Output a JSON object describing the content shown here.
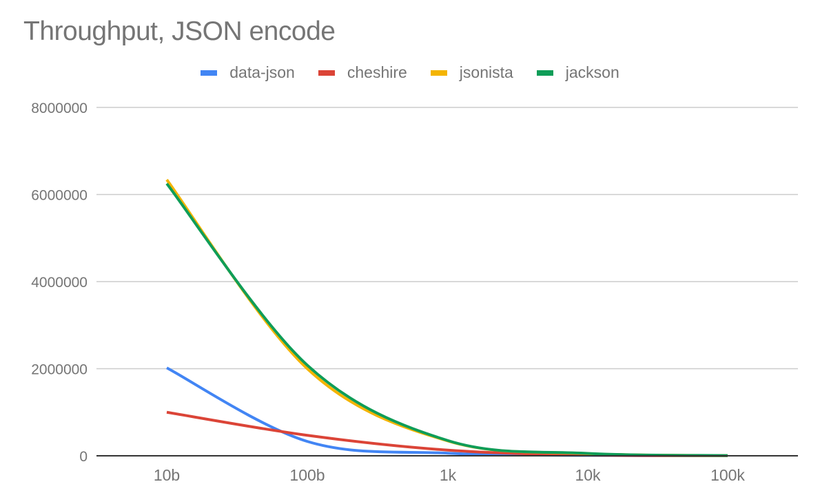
{
  "chart_data": {
    "type": "line",
    "title": "Throughput, JSON encode",
    "xlabel": "",
    "ylabel": "",
    "categories": [
      "10b",
      "100b",
      "1k",
      "10k",
      "100k"
    ],
    "ylim": [
      0,
      8000000
    ],
    "yticks": [
      "8000000",
      "6000000",
      "4000000",
      "2000000",
      "0"
    ],
    "grid": true,
    "legend_position": "top",
    "series": [
      {
        "name": "data-json",
        "color": "#4285f4",
        "values": [
          2020000,
          330000,
          60000,
          10000,
          2000
        ]
      },
      {
        "name": "cheshire",
        "color": "#db4437",
        "values": [
          1000000,
          470000,
          130000,
          15000,
          2000
        ]
      },
      {
        "name": "jsonista",
        "color": "#f4b400",
        "values": [
          6340000,
          2000000,
          340000,
          50000,
          5000
        ]
      },
      {
        "name": "jackson",
        "color": "#0f9d58",
        "values": [
          6250000,
          2080000,
          350000,
          55000,
          6000
        ]
      }
    ]
  }
}
